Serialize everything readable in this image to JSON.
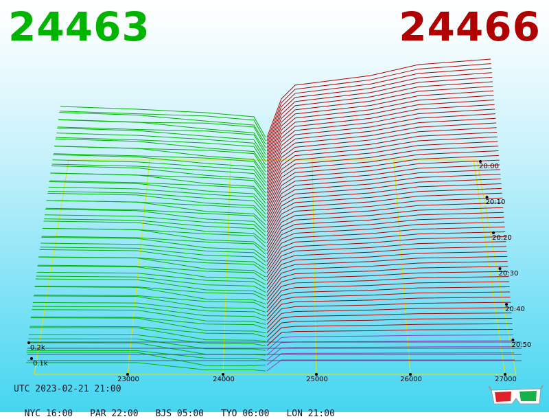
{
  "header": {
    "bid": "24463",
    "ask": "24466",
    "bid_color": "#00b400",
    "ask_color": "#b00000"
  },
  "footer": {
    "utc": "UTC 2023-02-21 21:00",
    "cities": [
      {
        "label": "NYC 16:00"
      },
      {
        "label": "PAR 22:00"
      },
      {
        "label": "BJS 05:00"
      },
      {
        "label": "TYO 06:00"
      },
      {
        "label": "LON 21:00"
      }
    ]
  },
  "icons": {
    "glasses": "3d-glasses-icon"
  },
  "chart_data": {
    "type": "3d-depth",
    "price_axis": {
      "ticks": [
        "23000",
        "24000",
        "25000",
        "26000",
        "27000"
      ],
      "values": [
        23000,
        24000,
        25000,
        26000,
        27000
      ]
    },
    "time_axis": {
      "ticks": [
        "20:00",
        "20:10",
        "20:20",
        "20:30",
        "20:40",
        "20:50"
      ]
    },
    "volume_axis": {
      "ticks": [
        "0.1k",
        "0.2k"
      ],
      "values": [
        100,
        200
      ]
    },
    "series": [
      {
        "side": "bid",
        "color": "#00b400"
      },
      {
        "side": "ask",
        "color": "#b00000"
      }
    ],
    "mid_price": 24465
  }
}
